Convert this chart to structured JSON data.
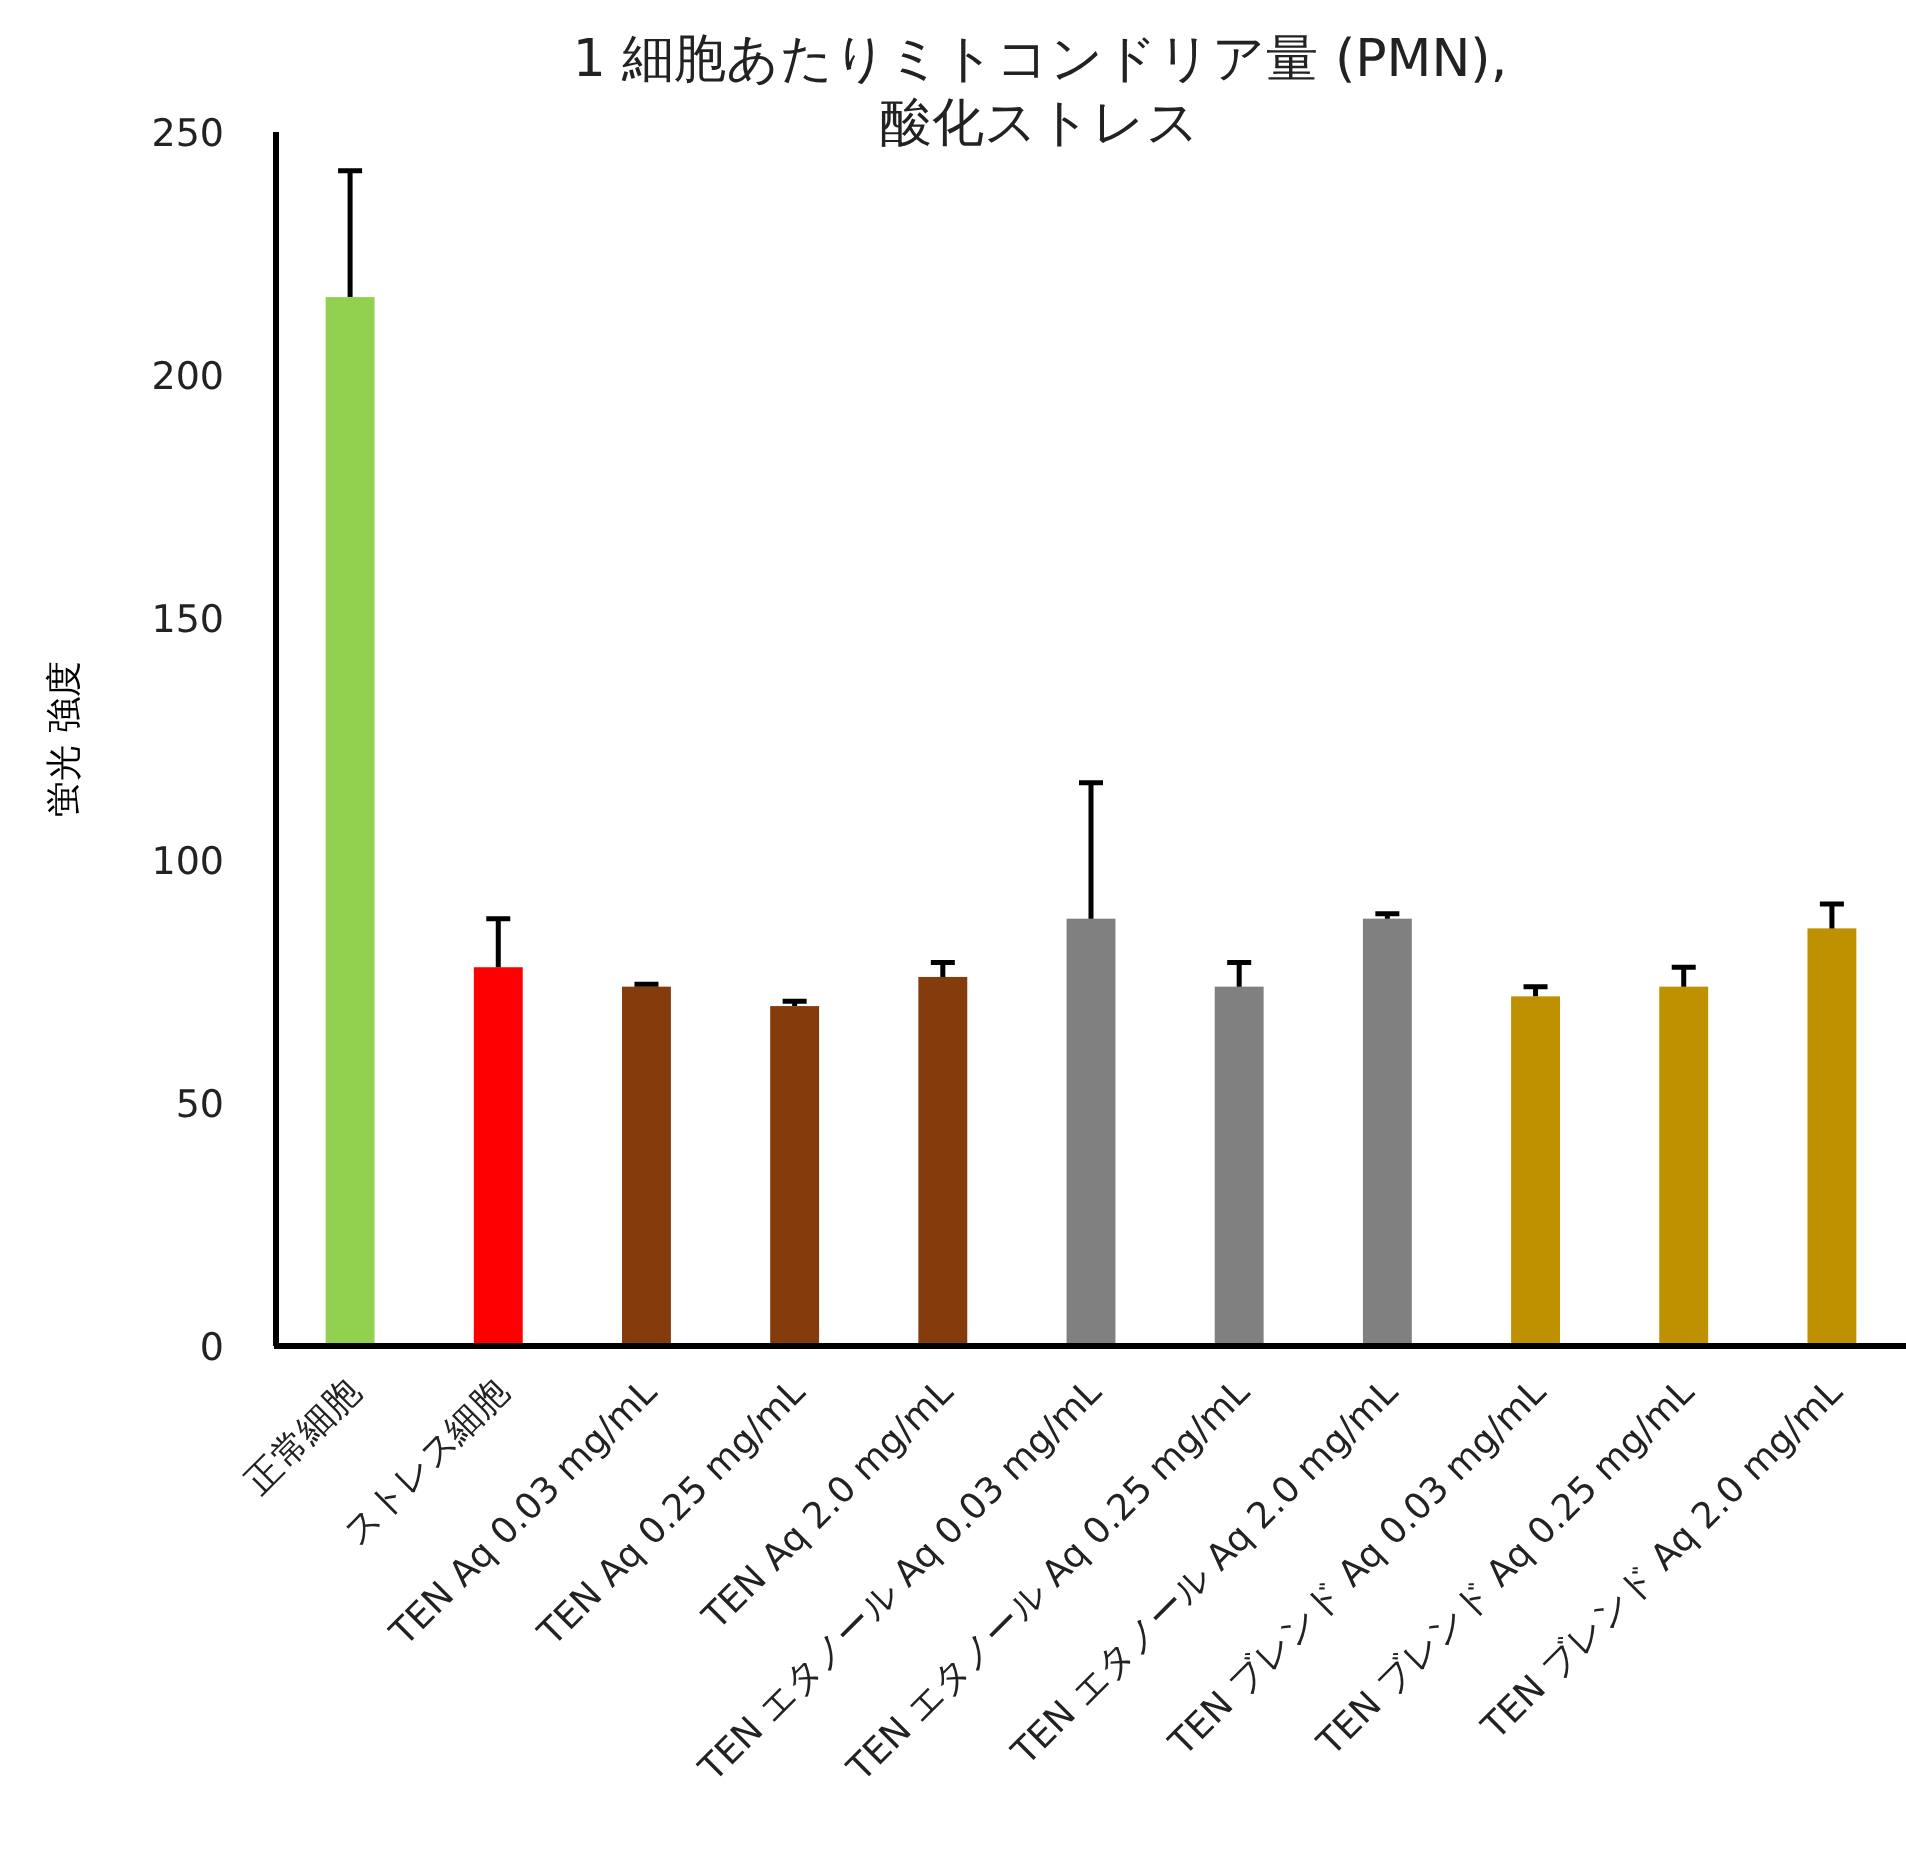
{
  "chart_data": {
    "type": "bar",
    "title": "1 細胞あたりミトコンドリア量 (PMN),\n酸化ストレス",
    "ylabel": "蛍光 強度",
    "categories": [
      "正常細胞",
      "ストレス細胞",
      "TEN Aq 0.03 mg/mL",
      "TEN Aq 0.25 mg/mL",
      "TEN Aq 2.0 mg/mL",
      "TEN エタノール Aq 0.03 mg/mL",
      "TEN エタノール Aq 0.25 mg/mL",
      "TEN エタノール Aq 2.0 mg/mL",
      "TEN ブレンド Aq 0.03 mg/mL",
      "TEN ブレンド Aq 0.25 mg/mL",
      "TEN ブレンド Aq 2.0 mg/mL"
    ],
    "values": [
      216,
      78,
      74,
      70,
      76,
      88,
      74,
      88,
      72,
      74,
      86
    ],
    "errors": [
      [
        216,
        242
      ],
      [
        78,
        88
      ],
      [
        74,
        74.5
      ],
      [
        70,
        71
      ],
      [
        76,
        79
      ],
      [
        88,
        116
      ],
      [
        74,
        79
      ],
      [
        88,
        89
      ],
      [
        72,
        74
      ],
      [
        74,
        78
      ],
      [
        86,
        91
      ]
    ],
    "colors": [
      "#92d050",
      "#ff0000",
      "#843c0c",
      "#843c0c",
      "#843c0c",
      "#808080",
      "#808080",
      "#808080",
      "#bf9000",
      "#bf9000",
      "#bf9000"
    ],
    "ylim": [
      0,
      250
    ],
    "yticks": [
      0,
      50,
      100,
      150,
      200,
      250
    ],
    "grid": false
  }
}
